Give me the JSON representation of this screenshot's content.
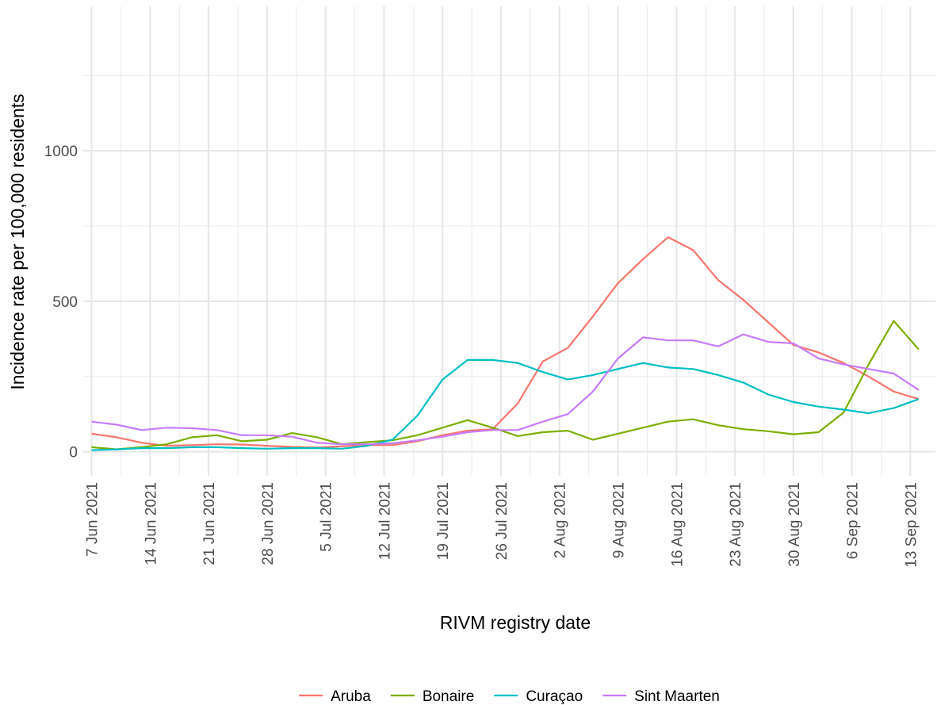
{
  "chart_data": {
    "type": "line",
    "x_label": "RIVM registry date",
    "y_label": "Incidence rate per 100,000 residents",
    "x": [
      "2021-06-07",
      "2021-06-10",
      "2021-06-13",
      "2021-06-16",
      "2021-06-19",
      "2021-06-22",
      "2021-06-25",
      "2021-06-28",
      "2021-07-01",
      "2021-07-04",
      "2021-07-07",
      "2021-07-10",
      "2021-07-13",
      "2021-07-16",
      "2021-07-19",
      "2021-07-22",
      "2021-07-25",
      "2021-07-28",
      "2021-07-31",
      "2021-08-03",
      "2021-08-06",
      "2021-08-09",
      "2021-08-12",
      "2021-08-15",
      "2021-08-18",
      "2021-08-21",
      "2021-08-24",
      "2021-08-27",
      "2021-08-30",
      "2021-09-02",
      "2021-09-05",
      "2021-09-08",
      "2021-09-11",
      "2021-09-14"
    ],
    "series": [
      {
        "name": "Aruba",
        "color": "#f8766d",
        "values": [
          60,
          48,
          30,
          20,
          22,
          25,
          24,
          20,
          16,
          14,
          18,
          22,
          22,
          35,
          55,
          70,
          75,
          160,
          300,
          345,
          450,
          560,
          640,
          713,
          670,
          570,
          505,
          430,
          355,
          330,
          295,
          250,
          200,
          175
        ]
      },
      {
        "name": "Bonaire",
        "color": "#7cae00",
        "values": [
          15,
          8,
          15,
          25,
          48,
          55,
          35,
          40,
          62,
          48,
          25,
          32,
          38,
          55,
          80,
          105,
          80,
          52,
          65,
          70,
          40,
          60,
          80,
          100,
          108,
          88,
          75,
          68,
          58,
          65,
          130,
          290,
          435,
          340
        ]
      },
      {
        "name": "Curaçao",
        "color": "#00bfc4",
        "values": [
          5,
          8,
          12,
          12,
          15,
          15,
          12,
          10,
          12,
          12,
          10,
          20,
          40,
          120,
          240,
          305,
          305,
          295,
          265,
          240,
          255,
          275,
          295,
          280,
          275,
          255,
          230,
          190,
          165,
          150,
          140,
          128,
          145,
          175
        ]
      },
      {
        "name": "Sint Maarten",
        "color": "#c77cff",
        "values": [
          100,
          90,
          72,
          80,
          78,
          72,
          55,
          55,
          50,
          30,
          25,
          25,
          28,
          38,
          50,
          65,
          72,
          72,
          100,
          125,
          200,
          310,
          380,
          370,
          370,
          350,
          390,
          365,
          360,
          310,
          290,
          275,
          260,
          205
        ]
      }
    ],
    "xlim": [
      "2021-06-06",
      "2021-09-16"
    ],
    "xticks": [
      {
        "value": "2021-06-07",
        "label": "7 Jun 2021"
      },
      {
        "value": "2021-06-14",
        "label": "14 Jun 2021"
      },
      {
        "value": "2021-06-21",
        "label": "21 Jun 2021"
      },
      {
        "value": "2021-06-28",
        "label": "28 Jun 2021"
      },
      {
        "value": "2021-07-05",
        "label": "5 Jul 2021"
      },
      {
        "value": "2021-07-12",
        "label": "12 Jul 2021"
      },
      {
        "value": "2021-07-19",
        "label": "19 Jul 2021"
      },
      {
        "value": "2021-07-26",
        "label": "26 Jul 2021"
      },
      {
        "value": "2021-08-02",
        "label": "2 Aug 2021"
      },
      {
        "value": "2021-08-09",
        "label": "9 Aug 2021"
      },
      {
        "value": "2021-08-16",
        "label": "16 Aug 2021"
      },
      {
        "value": "2021-08-23",
        "label": "23 Aug 2021"
      },
      {
        "value": "2021-08-30",
        "label": "30 Aug 2021"
      },
      {
        "value": "2021-09-06",
        "label": "6 Sep 2021"
      },
      {
        "value": "2021-09-13",
        "label": "13 Sep 2021"
      }
    ],
    "ylim": [
      -80,
      1480
    ],
    "yticks": [
      0,
      500,
      1000
    ],
    "grid": true,
    "legend": "bottom"
  }
}
